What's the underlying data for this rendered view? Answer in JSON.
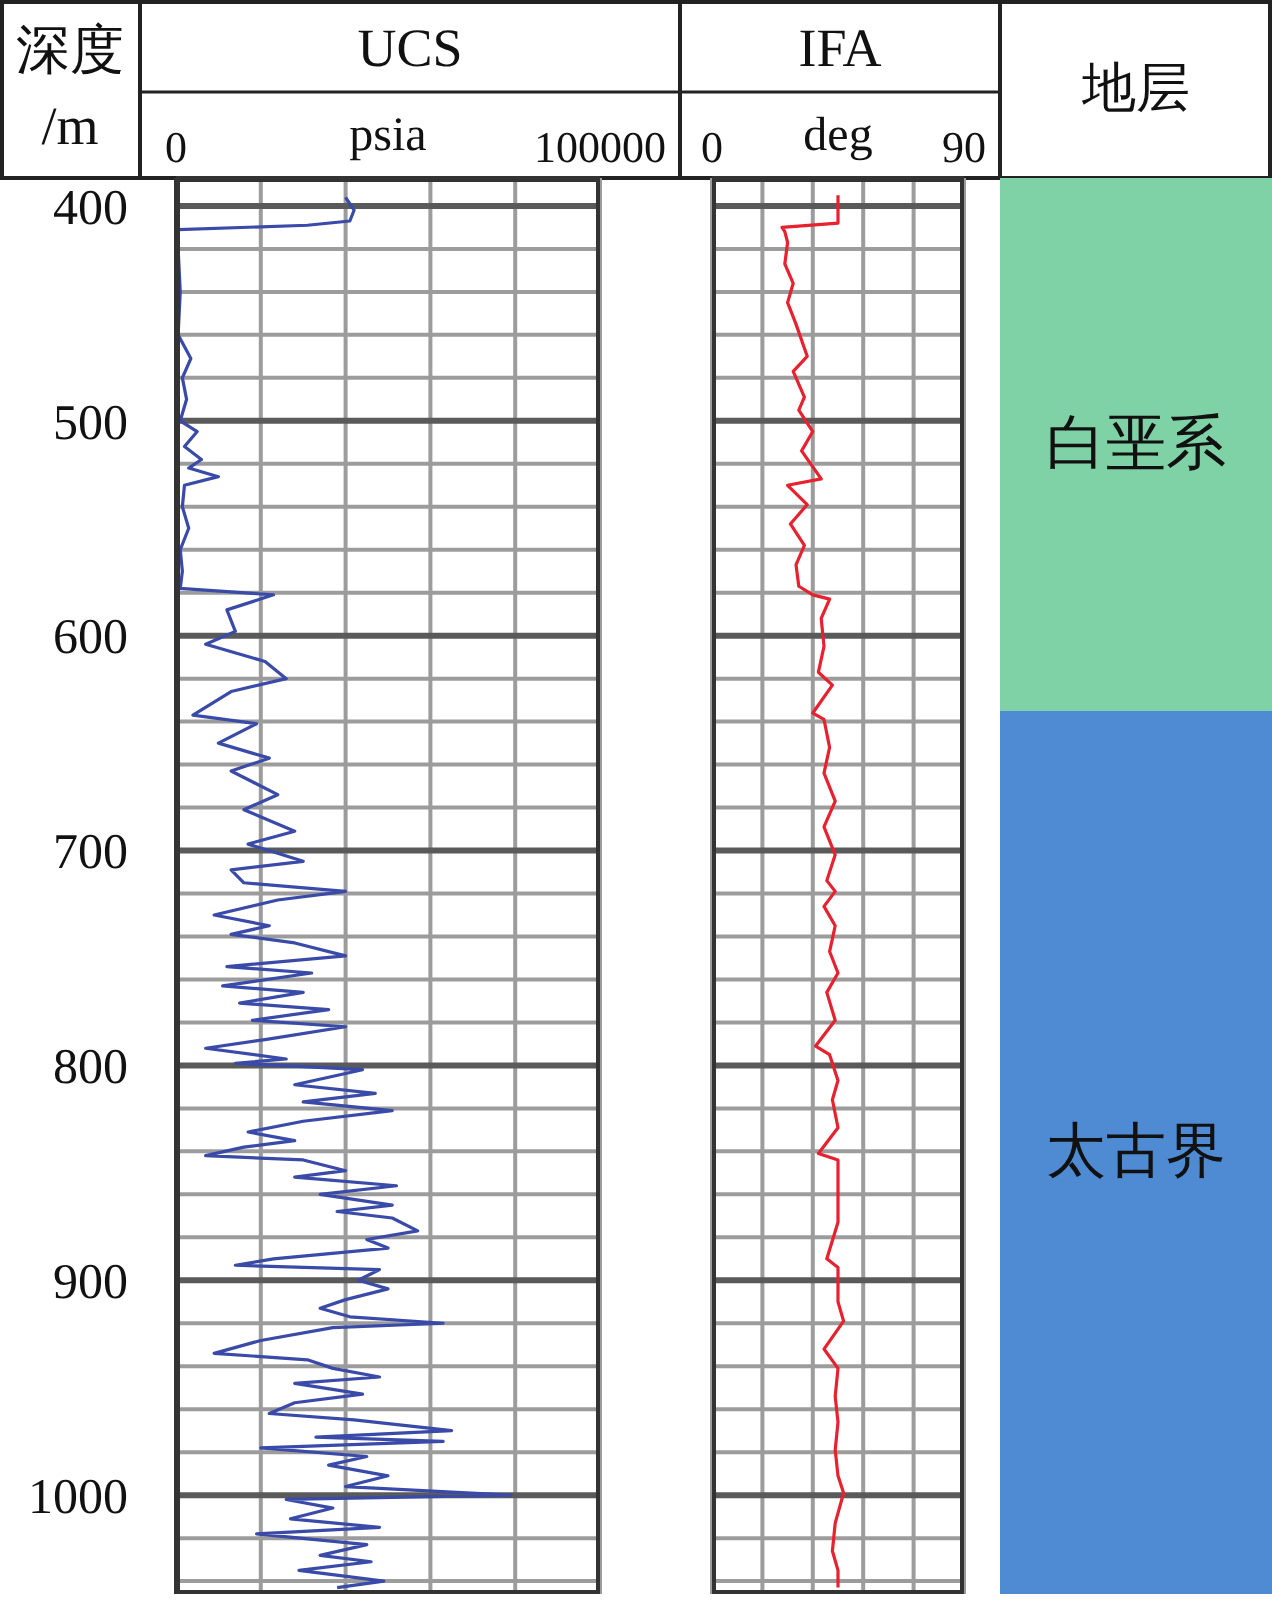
{
  "chart_data": [
    {
      "type": "line",
      "title": "UCS",
      "xlabel": "psia",
      "ylabel": "深度\n/m",
      "xlim": [
        0,
        100000
      ],
      "xticks": [
        0,
        {
          "value": 20000,
          "label": null
        },
        {
          "value": 40000,
          "label": null
        },
        {
          "value": 60000,
          "label": null
        },
        {
          "value": 80000,
          "label": null
        },
        100000
      ],
      "ylim": [
        1046,
        387
      ],
      "yticks": [
        400,
        {
          "value": 420,
          "label": null
        },
        {
          "value": 440,
          "label": null
        },
        {
          "value": 460,
          "label": null
        },
        {
          "value": 480,
          "label": null
        },
        500,
        {
          "value": 520,
          "label": null
        },
        {
          "value": 540,
          "label": null
        },
        {
          "value": 560,
          "label": null
        },
        {
          "value": 580,
          "label": null
        },
        600,
        {
          "value": 620,
          "label": null
        },
        {
          "value": 640,
          "label": null
        },
        {
          "value": 660,
          "label": null
        },
        {
          "value": 680,
          "label": null
        },
        700,
        {
          "value": 720,
          "label": null
        },
        {
          "value": 740,
          "label": null
        },
        {
          "value": 760,
          "label": null
        },
        {
          "value": 780,
          "label": null
        },
        800,
        {
          "value": 820,
          "label": null
        },
        {
          "value": 840,
          "label": null
        },
        {
          "value": 860,
          "label": null
        },
        {
          "value": 880,
          "label": null
        },
        900,
        {
          "value": 920,
          "label": null
        },
        {
          "value": 940,
          "label": null
        },
        {
          "value": 960,
          "label": null
        },
        {
          "value": 980,
          "label": null
        },
        1000,
        {
          "value": 1020,
          "label": null
        },
        {
          "value": 1040,
          "label": null
        }
      ],
      "grid": true,
      "series": [
        {
          "color": "#3a4aa8",
          "x": [
            40000,
            42000,
            41000,
            31000,
            500,
            500,
            1000,
            500,
            3500,
            1500,
            2500,
            1000,
            5000,
            2000,
            6000,
            3000,
            10000,
            2000,
            1500,
            3000,
            1000,
            1500,
            1000,
            23000,
            12000,
            14000,
            7000,
            21000,
            26000,
            13000,
            4000,
            19000,
            10000,
            22000,
            13000,
            24000,
            16000,
            28000,
            17000,
            30000,
            13000,
            16000,
            40000,
            24000,
            9000,
            22000,
            13000,
            28000,
            40000,
            12000,
            32000,
            11000,
            30000,
            15000,
            36000,
            18000,
            40000,
            21000,
            7000,
            26000,
            14000,
            44000,
            28000,
            47000,
            30000,
            51000,
            30000,
            17000,
            28000,
            16000,
            7000,
            30000,
            40000,
            28000,
            52000,
            34000,
            51000,
            38000,
            51000,
            57000,
            45000,
            50000,
            23000,
            14000,
            48000,
            43000,
            50000,
            40000,
            34000,
            41000,
            63000,
            37000,
            20000,
            9000,
            31000,
            37000,
            48000,
            28000,
            44000,
            28000,
            22000,
            42000,
            65000,
            33000,
            63000,
            20000,
            45000,
            36000,
            50000,
            40000,
            79000,
            26000,
            37000,
            27000,
            48000,
            19000,
            45000,
            34000,
            46000,
            29000,
            49000,
            38000
          ],
          "values": [
            396,
            402,
            407,
            409,
            411,
            420,
            440,
            460,
            471,
            480,
            490,
            500,
            505,
            512,
            518,
            522,
            526,
            530,
            540,
            550,
            560,
            570,
            578,
            581,
            588,
            598,
            604,
            612,
            620,
            626,
            637,
            641,
            650,
            657,
            663,
            674,
            681,
            691,
            697,
            705,
            709,
            715,
            719,
            723,
            730,
            735,
            739,
            743,
            749,
            754,
            757,
            763,
            766,
            771,
            774,
            779,
            782,
            788,
            792,
            797,
            799,
            802,
            809,
            813,
            817,
            821,
            826,
            831,
            835,
            838,
            842,
            844,
            849,
            852,
            856,
            860,
            865,
            868,
            871,
            877,
            881,
            885,
            890,
            893,
            895,
            900,
            904,
            909,
            913,
            917,
            920,
            922,
            928,
            934,
            937,
            941,
            945,
            948,
            953,
            957,
            962,
            965,
            970,
            973,
            975,
            978,
            982,
            986,
            991,
            996,
            1000,
            1002,
            1006,
            1011,
            1015,
            1018,
            1023,
            1028,
            1031,
            1035,
            1040,
            1043
          ]
        }
      ]
    },
    {
      "type": "line",
      "title": "IFA",
      "xlabel": "deg",
      "xlim": [
        0,
        90
      ],
      "xticks": [
        0,
        {
          "value": 18,
          "label": null
        },
        {
          "value": 36,
          "label": null
        },
        {
          "value": 54,
          "label": null
        },
        {
          "value": 72,
          "label": null
        },
        90
      ],
      "ylim": [
        1046,
        387
      ],
      "yticks": [
        400,
        {
          "value": 420,
          "label": null
        },
        {
          "value": 440,
          "label": null
        },
        {
          "value": 460,
          "label": null
        },
        {
          "value": 480,
          "label": null
        },
        500,
        {
          "value": 520,
          "label": null
        },
        {
          "value": 540,
          "label": null
        },
        {
          "value": 560,
          "label": null
        },
        {
          "value": 580,
          "label": null
        },
        600,
        {
          "value": 620,
          "label": null
        },
        {
          "value": 640,
          "label": null
        },
        {
          "value": 660,
          "label": null
        },
        {
          "value": 680,
          "label": null
        },
        700,
        {
          "value": 720,
          "label": null
        },
        {
          "value": 740,
          "label": null
        },
        {
          "value": 760,
          "label": null
        },
        {
          "value": 780,
          "label": null
        },
        800,
        {
          "value": 820,
          "label": null
        },
        {
          "value": 840,
          "label": null
        },
        {
          "value": 860,
          "label": null
        },
        {
          "value": 880,
          "label": null
        },
        900,
        {
          "value": 920,
          "label": null
        },
        {
          "value": 940,
          "label": null
        },
        {
          "value": 960,
          "label": null
        },
        {
          "value": 980,
          "label": null
        },
        1000,
        {
          "value": 1020,
          "label": null
        },
        {
          "value": 1040,
          "label": null
        }
      ],
      "grid": true,
      "tick_labels": "x",
      "series": [
        {
          "color": "#e8212e",
          "x": [
            45,
            45,
            25,
            26,
            27,
            26,
            29,
            27,
            30,
            34,
            29,
            33,
            31,
            36,
            32,
            39,
            27,
            34,
            28,
            33,
            30,
            31,
            36,
            42,
            39,
            40,
            38,
            43,
            36,
            40,
            42,
            40,
            44,
            40,
            44,
            41,
            44,
            40,
            44,
            42,
            45,
            41,
            44,
            37,
            42,
            45,
            43,
            45,
            38,
            45,
            45,
            45,
            41,
            45,
            45,
            47,
            40,
            45,
            44,
            45,
            44,
            45,
            47,
            44,
            43,
            45,
            45
          ],
          "values": [
            395,
            408,
            410,
            412,
            417,
            427,
            436,
            445,
            455,
            470,
            477,
            489,
            495,
            505,
            514,
            527,
            530,
            539,
            548,
            558,
            567,
            577,
            581,
            583,
            592,
            605,
            617,
            623,
            636,
            639,
            652,
            664,
            677,
            689,
            702,
            714,
            719,
            726,
            735,
            747,
            757,
            766,
            779,
            791,
            795,
            807,
            816,
            829,
            841,
            844,
            857,
            873,
            890,
            894,
            910,
            919,
            932,
            941,
            954,
            966,
            979,
            991,
            999,
            1013,
            1026,
            1035,
            1043
          ]
        }
      ]
    },
    {
      "type": "bar",
      "title": "地层",
      "categories": [
        null
      ],
      "stacked": true,
      "ylim": [
        1046,
        387
      ],
      "tick_labels": false,
      "series": [
        {
          "name": "白垩系",
          "color": "#7fd1a6",
          "values": [
            635
          ]
        },
        {
          "name": "太古界",
          "color": "#4f8bd2",
          "values": [
            411
          ]
        }
      ]
    }
  ]
}
